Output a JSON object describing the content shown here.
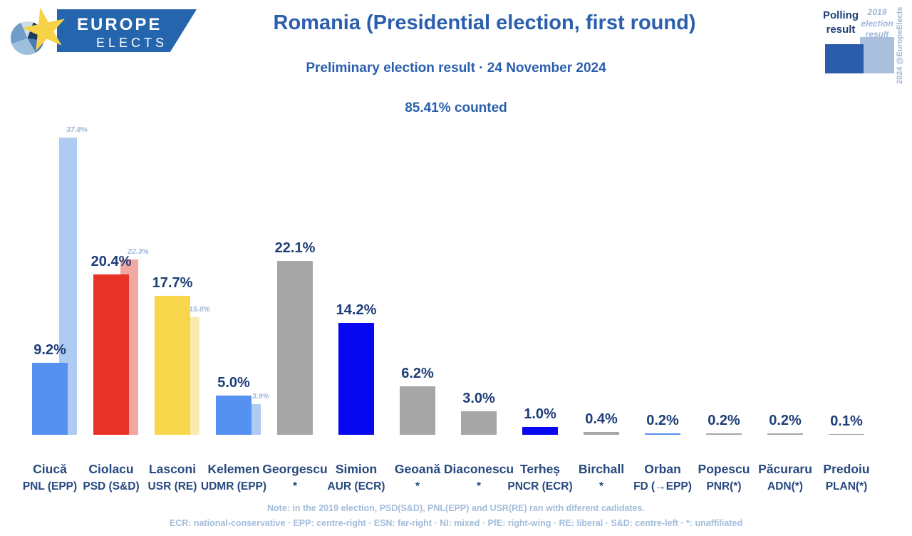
{
  "logo": {
    "line1": "EUROPE",
    "line2": "ELECTS"
  },
  "header": {
    "title": "Romania (Presidential election, first round)",
    "subtitle": "Preliminary election result · 24 November 2024",
    "counted": "85.41% counted"
  },
  "legend": {
    "polling_label": "Polling result",
    "previous_label": "2019 election result",
    "polling_color": "#2a5ca9",
    "previous_color": "#aabfdd",
    "credit": "2024 @EuropeElects"
  },
  "chart_data": {
    "type": "bar",
    "title": "Romania (Presidential election, first round)",
    "subtitle": "Preliminary election result · 24 November 2024",
    "counted": "85.41% counted",
    "unit": "%",
    "ylim": [
      0,
      40
    ],
    "grid": false,
    "legend_position": "top-right",
    "series_names": [
      "Polling result",
      "2019 election result"
    ],
    "candidates": [
      {
        "name": "Ciucă",
        "party": "PNL (EPP)",
        "value": 9.2,
        "label": "9.2%",
        "color": "#5591f0",
        "prev_value": 37.8,
        "prev_label": "37.8%",
        "prev_color": "#aecbf2"
      },
      {
        "name": "Ciolacu",
        "party": "PSD (S&D)",
        "value": 20.4,
        "label": "20.4%",
        "color": "#e83228",
        "prev_value": 22.3,
        "prev_label": "22.3%",
        "prev_color": "#f2a8a2"
      },
      {
        "name": "Lasconi",
        "party": "USR (RE)",
        "value": 17.7,
        "label": "17.7%",
        "color": "#f7d64b",
        "prev_value": 15.0,
        "prev_label": "15.0%",
        "prev_color": "#faeab0"
      },
      {
        "name": "Kelemen",
        "party": "UDMR (EPP)",
        "value": 5.0,
        "label": "5.0%",
        "color": "#5591f0",
        "prev_value": 3.9,
        "prev_label": "3.9%",
        "prev_color": "#aecbf2"
      },
      {
        "name": "Georgescu",
        "party": "*",
        "value": 22.1,
        "label": "22.1%",
        "color": "#a6a6a6"
      },
      {
        "name": "Simion",
        "party": "AUR (ECR)",
        "value": 14.2,
        "label": "14.2%",
        "color": "#0707f0"
      },
      {
        "name": "Geoană",
        "party": "*",
        "value": 6.2,
        "label": "6.2%",
        "color": "#a6a6a6"
      },
      {
        "name": "Diaconescu",
        "party": "*",
        "value": 3.0,
        "label": "3.0%",
        "color": "#a6a6a6"
      },
      {
        "name": "Terheș",
        "party": "PNCR (ECR)",
        "value": 1.0,
        "label": "1.0%",
        "color": "#0707f0"
      },
      {
        "name": "Birchall",
        "party": "*",
        "value": 0.4,
        "label": "0.4%",
        "color": "#a6a6a6"
      },
      {
        "name": "Orban",
        "party": "FD (→EPP)",
        "value": 0.2,
        "label": "0.2%",
        "color": "#5591f0"
      },
      {
        "name": "Popescu",
        "party": "PNR(*)",
        "value": 0.2,
        "label": "0.2%",
        "color": "#a6a6a6"
      },
      {
        "name": "Păcuraru",
        "party": "ADN(*)",
        "value": 0.2,
        "label": "0.2%",
        "color": "#a6a6a6"
      },
      {
        "name": "Predoiu",
        "party": "PLAN(*)",
        "value": 0.1,
        "label": "0.1%",
        "color": "#a6a6a6"
      }
    ]
  },
  "footer": {
    "note": "Note: in the 2019 election, PSD(S&D), PNL(EPP) and USR(RE) ran with diferent cadidates.",
    "legend_line": "ECR: national-conservative · EPP: centre-right · ESN: far-right · NI: mixed · PfE: right-wing · RE: liberal · S&D: centre-left · *: unaffiliated"
  }
}
